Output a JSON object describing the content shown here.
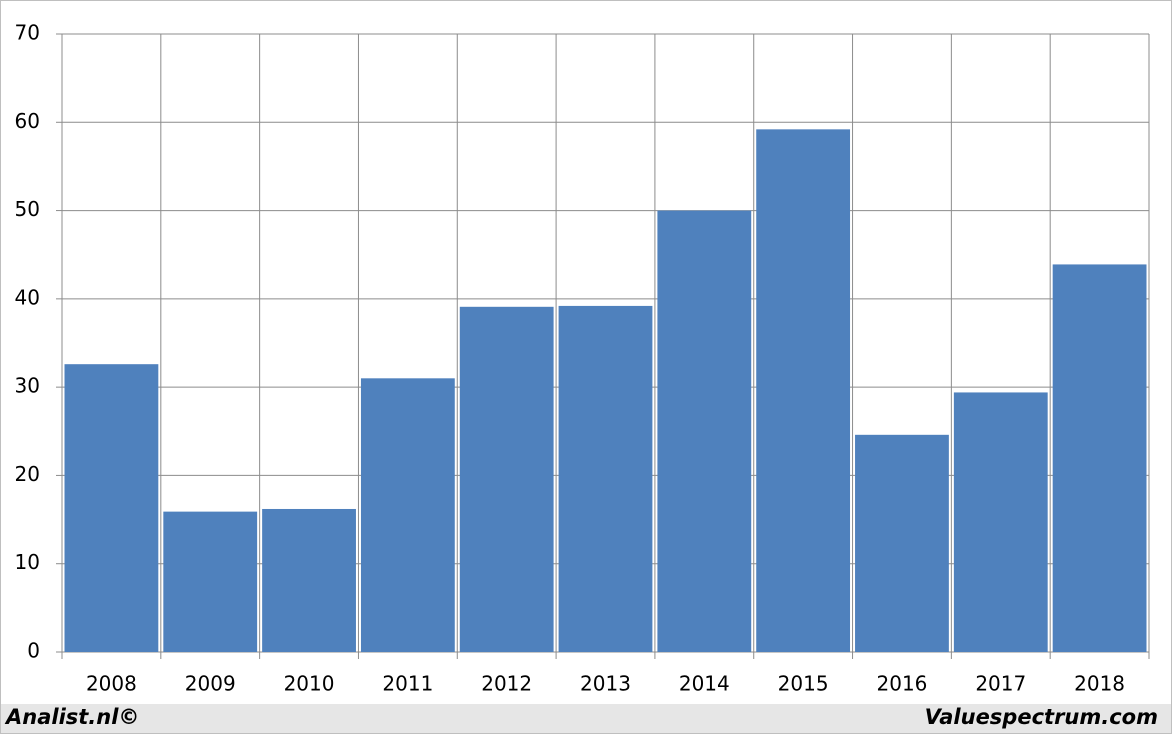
{
  "chart_data": {
    "type": "bar",
    "categories": [
      "2008",
      "2009",
      "2010",
      "2011",
      "2012",
      "2013",
      "2014",
      "2015",
      "2016",
      "2017",
      "2018"
    ],
    "values": [
      32.6,
      15.9,
      16.2,
      31.0,
      39.1,
      39.2,
      50.0,
      59.2,
      24.6,
      29.4,
      43.9
    ],
    "color": "#4f81bd",
    "ylim": [
      0,
      70
    ],
    "yticks": [
      0,
      10,
      20,
      30,
      40,
      50,
      60,
      70
    ],
    "grid": true,
    "footer_left": "Analist.nl©",
    "footer_right": "Valuespectrum.com"
  }
}
